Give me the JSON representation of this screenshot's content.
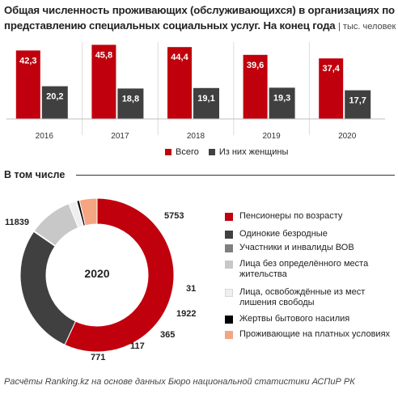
{
  "header": {
    "title": "Общая численность проживающих (обслуживающихся) в организациях по представлению специальных социальных услуг. На конец года",
    "unit": "| тыс. человек"
  },
  "chart_data": [
    {
      "type": "bar",
      "categories": [
        "2016",
        "2017",
        "2018",
        "2019",
        "2020"
      ],
      "series": [
        {
          "name": "Всего",
          "color": "#c0000c",
          "values": [
            42.3,
            45.8,
            44.4,
            39.6,
            37.4
          ]
        },
        {
          "name": "Из них женщины",
          "color": "#404040",
          "values": [
            20.2,
            18.8,
            19.1,
            19.3,
            17.7
          ]
        }
      ],
      "value_labels": {
        "Всего": [
          "42,3",
          "45,8",
          "44,4",
          "39,6",
          "37,4"
        ],
        "Из них женщины": [
          "20,2",
          "18,8",
          "19,1",
          "19,3",
          "17,7"
        ]
      },
      "legend_position": "bottom",
      "grid": false
    },
    {
      "type": "pie",
      "title": "2020",
      "section_title": "В том числе",
      "slices": [
        {
          "name": "Пенсионеры по возрасту",
          "value": 11839,
          "label": "11839",
          "color": "#c0000c"
        },
        {
          "name": "Одинокие безродные",
          "value": 5753,
          "label": "5753",
          "color": "#404040"
        },
        {
          "name": "Участники и инвалиды ВОВ",
          "value": 31,
          "label": "31",
          "color": "#7f7f7f"
        },
        {
          "name": "Лица без определённого места жительства",
          "value": 1922,
          "label": "1922",
          "color": "#c8c8c8"
        },
        {
          "name": "Лица, освобождённые из мест лишения свободы",
          "value": 365,
          "label": "365",
          "color": "#efefef"
        },
        {
          "name": "Жертвы бытового насилия",
          "value": 117,
          "label": "117",
          "color": "#000000"
        },
        {
          "name": "Проживающие на платных условиях",
          "value": 771,
          "label": "771",
          "color": "#f4a582"
        }
      ],
      "legend_labels": [
        "Пенсионеры по возрасту",
        "Одинокие безродные",
        "Участники и инвалиды ВОВ",
        "Лица без определённого места жительства",
        "Лица, освобождённые из мест лишения свободы",
        "Жертвы бытового насилия",
        "Проживающие на платных условиях"
      ]
    }
  ],
  "footer": "Расчёты Ranking.kz на основе данных Бюро национальной статистики АСПиР РК"
}
